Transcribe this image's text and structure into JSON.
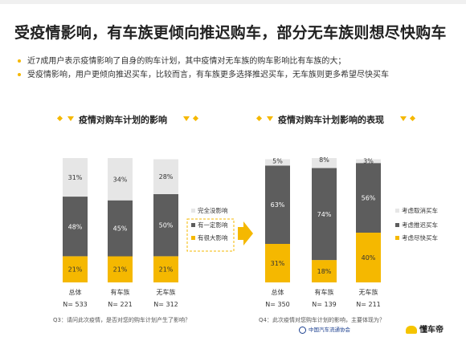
{
  "title": "受疫情影响，有车族更倾向推迟购车，部分无车族则想尽快购车",
  "bullets": [
    "近7成用户表示疫情影响了自身的购车计划，其中疫情对无车族的购车影响比有车族的大；",
    "受疫情影响，用户更倾向推迟买车，比较而言，有车族更多选择推迟买车，无车族则更多希望尽快买车"
  ],
  "colors": {
    "accent": "#f5b800",
    "dark": "#5d5d5d",
    "light": "#e6e6e6"
  },
  "footnotes": {
    "left": "Q3：请问此次疫情，是否对您的购车计划产生了影响？",
    "right": "Q4：此次疫情对您购车计划的影响，主要体现为？"
  },
  "logos": {
    "association": "中国汽车流通协会",
    "brand": "懂车帝"
  },
  "chart_data": [
    {
      "type": "bar",
      "stacked": true,
      "title": "疫情对购车计划的影响",
      "categories": [
        "总体",
        "有车族",
        "无车族"
      ],
      "sample_sizes": [
        "N= 533",
        "N= 221",
        "N= 312"
      ],
      "series": [
        {
          "name": "有很大影响",
          "values": [
            21,
            21,
            21
          ],
          "labels": [
            "21%",
            "21%",
            "21%"
          ],
          "color": "#f5b800"
        },
        {
          "name": "有一定影响",
          "values": [
            48,
            45,
            50
          ],
          "labels": [
            "48%",
            "45%",
            "50%"
          ],
          "color": "#5d5d5d"
        },
        {
          "name": "完全没影响",
          "values": [
            31,
            34,
            28
          ],
          "labels": [
            "31%",
            "34%",
            "28%"
          ],
          "color": "#e6e6e6"
        }
      ],
      "legend_order": [
        "完全没影响",
        "有一定影响",
        "有很大影响"
      ],
      "legend_position": "right",
      "ylim": [
        0,
        100
      ]
    },
    {
      "type": "bar",
      "stacked": true,
      "title": "疫情对购车计划影响的表现",
      "categories": [
        "总体",
        "有车族",
        "无车族"
      ],
      "sample_sizes": [
        "N= 350",
        "N= 139",
        "N= 211"
      ],
      "series": [
        {
          "name": "考虑尽快买车",
          "values": [
            31,
            18,
            40
          ],
          "labels": [
            "31%",
            "18%",
            "40%"
          ],
          "color": "#f5b800"
        },
        {
          "name": "考虑推迟买车",
          "values": [
            63,
            74,
            56
          ],
          "labels": [
            "63%",
            "74%",
            "56%"
          ],
          "color": "#5d5d5d"
        },
        {
          "name": "考虑取消买车",
          "values": [
            5,
            8,
            3
          ],
          "labels": [
            "5%",
            "8%",
            "3%"
          ],
          "color": "#e6e6e6"
        }
      ],
      "legend_order": [
        "考虑取消买车",
        "考虑推迟买车",
        "考虑尽快买车"
      ],
      "legend_position": "right",
      "ylim": [
        0,
        100
      ]
    }
  ]
}
